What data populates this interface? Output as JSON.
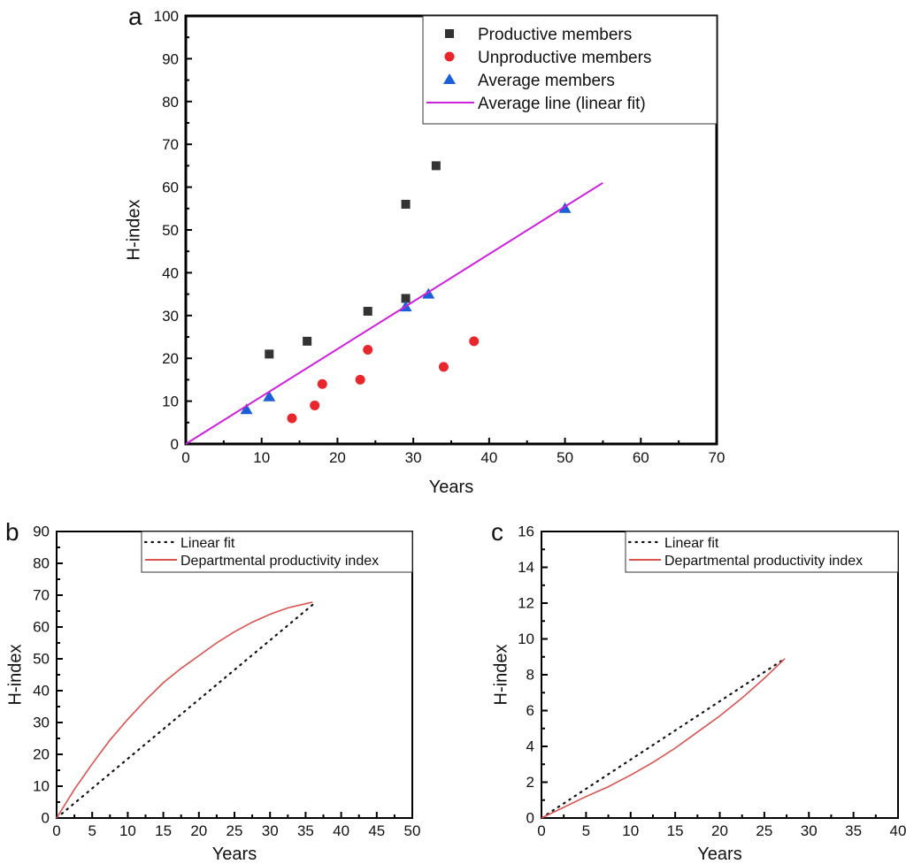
{
  "chart_data": [
    {
      "id": "a",
      "panel_label": "a",
      "type": "scatter",
      "xlabel": "Years",
      "ylabel": "H-index",
      "xlim": [
        0,
        70
      ],
      "ylim": [
        0,
        100
      ],
      "xticks": [
        0,
        10,
        20,
        30,
        40,
        50,
        60,
        70
      ],
      "yticks": [
        0,
        10,
        20,
        30,
        40,
        50,
        60,
        70,
        80,
        90,
        100
      ],
      "grid": false,
      "legend_position": "top-right",
      "series": [
        {
          "name": "Productive members",
          "marker": "square",
          "color": "#333333",
          "points": [
            [
              11,
              21
            ],
            [
              16,
              24
            ],
            [
              24,
              31
            ],
            [
              29,
              34
            ],
            [
              29,
              56
            ],
            [
              33,
              65
            ]
          ]
        },
        {
          "name": "Unproductive members",
          "marker": "circle",
          "color": "#e8262b",
          "points": [
            [
              14,
              6
            ],
            [
              17,
              9
            ],
            [
              18,
              14
            ],
            [
              23,
              15
            ],
            [
              24,
              22
            ],
            [
              34,
              18
            ],
            [
              38,
              24
            ]
          ]
        },
        {
          "name": "Average members",
          "marker": "triangle",
          "color": "#1a5fd6",
          "points": [
            [
              8,
              8
            ],
            [
              11,
              11
            ],
            [
              29,
              32
            ],
            [
              32,
              35
            ],
            [
              50,
              55
            ]
          ]
        },
        {
          "name": "Average line (linear fit)",
          "marker": "line",
          "color": "#cc22dd",
          "points": [
            [
              0,
              0
            ],
            [
              55,
              61
            ]
          ]
        }
      ]
    },
    {
      "id": "b",
      "panel_label": "b",
      "type": "line",
      "xlabel": "Years",
      "ylabel": "H-index",
      "xlim": [
        0,
        50
      ],
      "ylim": [
        0,
        90
      ],
      "xticks": [
        0,
        5,
        10,
        15,
        20,
        25,
        30,
        35,
        40,
        45,
        50
      ],
      "yticks": [
        0,
        10,
        20,
        30,
        40,
        50,
        60,
        70,
        80,
        90
      ],
      "grid": false,
      "legend_position": "top-right",
      "series": [
        {
          "name": "Linear fit",
          "style": "dotted",
          "color": "#111111",
          "points": [
            [
              0,
              0
            ],
            [
              36,
              67
            ]
          ]
        },
        {
          "name": "Departmental productivity index",
          "style": "solid",
          "color": "#d9534f",
          "points": [
            [
              0,
              0
            ],
            [
              2.5,
              9
            ],
            [
              5,
              17
            ],
            [
              7.5,
              24.5
            ],
            [
              10,
              31
            ],
            [
              12.5,
              37
            ],
            [
              15,
              42.5
            ],
            [
              17.5,
              47
            ],
            [
              20,
              51
            ],
            [
              22.5,
              55
            ],
            [
              25,
              58.5
            ],
            [
              27.5,
              61.5
            ],
            [
              30,
              64
            ],
            [
              32.5,
              66
            ],
            [
              35,
              67.3
            ],
            [
              36,
              67.8
            ]
          ]
        }
      ]
    },
    {
      "id": "c",
      "panel_label": "c",
      "type": "line",
      "xlabel": "Years",
      "ylabel": "H-index",
      "xlim": [
        0,
        40
      ],
      "ylim": [
        0,
        16
      ],
      "xticks": [
        0,
        5,
        10,
        15,
        20,
        25,
        30,
        35,
        40
      ],
      "yticks": [
        0,
        2,
        4,
        6,
        8,
        10,
        12,
        14,
        16
      ],
      "grid": false,
      "legend_position": "top-right",
      "series": [
        {
          "name": "Linear fit",
          "style": "dotted",
          "color": "#111111",
          "points": [
            [
              0,
              0
            ],
            [
              27,
              8.8
            ]
          ]
        },
        {
          "name": "Departmental productivity index",
          "style": "solid",
          "color": "#d9534f",
          "points": [
            [
              0,
              0
            ],
            [
              2.5,
              0.6
            ],
            [
              5,
              1.2
            ],
            [
              7.5,
              1.75
            ],
            [
              10,
              2.4
            ],
            [
              12.5,
              3.1
            ],
            [
              15,
              3.9
            ],
            [
              17.5,
              4.8
            ],
            [
              20,
              5.7
            ],
            [
              22.5,
              6.7
            ],
            [
              25,
              7.8
            ],
            [
              27.3,
              8.9
            ]
          ]
        }
      ]
    }
  ]
}
